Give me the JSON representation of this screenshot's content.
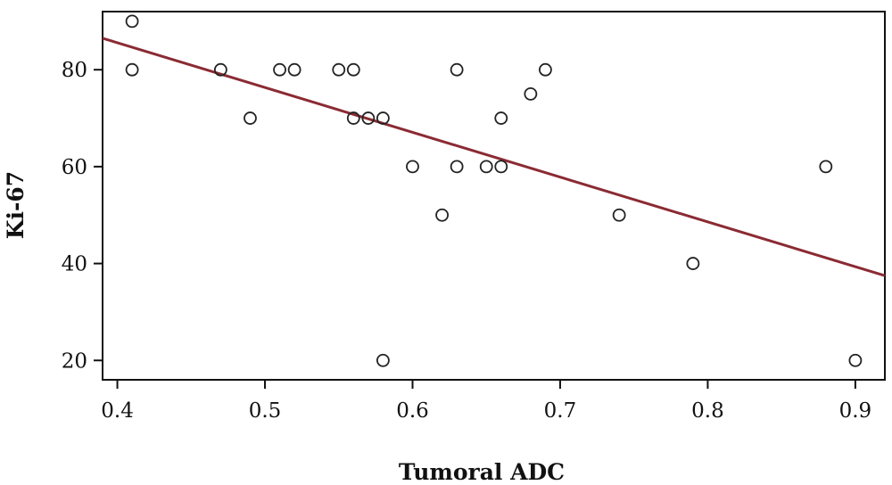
{
  "chart_data": {
    "type": "scatter",
    "title": "",
    "xlabel": "Tumoral ADC",
    "ylabel": "Ki-67",
    "xlim": [
      0.39,
      0.92
    ],
    "ylim": [
      16,
      92
    ],
    "xticks": [
      0.4,
      0.5,
      0.6,
      0.7,
      0.8,
      0.9
    ],
    "xtick_labels": [
      "0.4",
      "0.5",
      "0.6",
      "0.7",
      "0.8",
      "0.9"
    ],
    "yticks": [
      20,
      40,
      60,
      80
    ],
    "ytick_labels": [
      "20",
      "40",
      "60",
      "80"
    ],
    "grid": false,
    "legend": false,
    "series": [
      {
        "marker": "open-circle",
        "points": [
          [
            0.41,
            90
          ],
          [
            0.41,
            80
          ],
          [
            0.47,
            80
          ],
          [
            0.49,
            70
          ],
          [
            0.51,
            80
          ],
          [
            0.52,
            80
          ],
          [
            0.55,
            80
          ],
          [
            0.56,
            80
          ],
          [
            0.56,
            70
          ],
          [
            0.57,
            70
          ],
          [
            0.58,
            70
          ],
          [
            0.58,
            20
          ],
          [
            0.6,
            60
          ],
          [
            0.62,
            50
          ],
          [
            0.63,
            80
          ],
          [
            0.63,
            60
          ],
          [
            0.65,
            60
          ],
          [
            0.66,
            70
          ],
          [
            0.66,
            60
          ],
          [
            0.68,
            75
          ],
          [
            0.69,
            80
          ],
          [
            0.74,
            50
          ],
          [
            0.79,
            40
          ],
          [
            0.88,
            60
          ],
          [
            0.9,
            20
          ]
        ]
      }
    ],
    "fit_line": {
      "type": "linear",
      "points": [
        [
          0.39,
          86.5
        ],
        [
          0.92,
          37.5
        ]
      ],
      "color": "#8b2a33"
    },
    "colors": {
      "marker_stroke": "#222222",
      "axis": "#111111"
    }
  }
}
